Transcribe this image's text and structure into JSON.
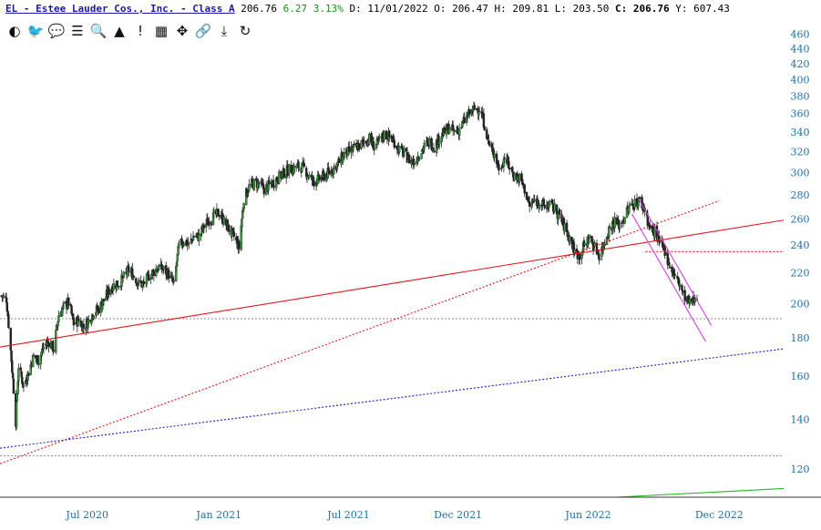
{
  "header": {
    "symbol_name": "EL - Estee Lauder Cos., Inc. - Class A",
    "last": "206.76",
    "change": "6.27 3.13%",
    "date_label": "D:",
    "date": "11/01/2022",
    "open_label": "O:",
    "open": "206.47",
    "high_label": "H:",
    "high": "209.81",
    "low_label": "L:",
    "low": "203.50",
    "close_label": "C:",
    "close": "206.76",
    "y_label": "Y:",
    "y": "607.43"
  },
  "toolbar": [
    {
      "icon": "dashboard-icon",
      "glyph": "◐"
    },
    {
      "icon": "twitter-icon",
      "glyph": "🐦"
    },
    {
      "icon": "comment-icon",
      "glyph": "💬"
    },
    {
      "icon": "list-icon",
      "glyph": "☰"
    },
    {
      "icon": "search-icon",
      "glyph": "🔍"
    },
    {
      "icon": "triangle-icon",
      "glyph": "▲"
    },
    {
      "icon": "exclamation-icon",
      "glyph": "!"
    },
    {
      "icon": "calendar-icon",
      "glyph": "▦"
    },
    {
      "icon": "move-icon",
      "glyph": "✥"
    },
    {
      "icon": "link-icon",
      "glyph": "🔗"
    },
    {
      "icon": "download-icon",
      "glyph": "⤓"
    },
    {
      "icon": "refresh-icon",
      "glyph": "↻"
    }
  ],
  "chart_data": {
    "type": "candlestick",
    "y_scale": "log",
    "ylim": [
      110,
      470
    ],
    "y_ticks": [
      120,
      140,
      160,
      180,
      200,
      220,
      240,
      260,
      280,
      300,
      320,
      340,
      360,
      380,
      400,
      420,
      440,
      460
    ],
    "x_ticks": [
      "Jul 2020",
      "Jan 2021",
      "Jul 2021",
      "Dec 2021",
      "Jun 2022",
      "Dec 2022"
    ],
    "xlim": [
      "2020-03-01",
      "2023-03-01"
    ],
    "x_tick_dates": [
      "2020-07-01",
      "2021-01-01",
      "2021-07-01",
      "2021-12-01",
      "2022-06-01",
      "2022-12-01"
    ],
    "approx_close_path": [
      [
        "2020-03-03",
        205
      ],
      [
        "2020-03-10",
        203
      ],
      [
        "2020-03-17",
        168
      ],
      [
        "2020-03-23",
        139
      ],
      [
        "2020-03-27",
        165
      ],
      [
        "2020-04-03",
        155
      ],
      [
        "2020-04-10",
        162
      ],
      [
        "2020-04-17",
        170
      ],
      [
        "2020-04-24",
        168
      ],
      [
        "2020-05-01",
        175
      ],
      [
        "2020-05-08",
        178
      ],
      [
        "2020-05-15",
        174
      ],
      [
        "2020-05-22",
        193
      ],
      [
        "2020-05-29",
        198
      ],
      [
        "2020-06-05",
        201
      ],
      [
        "2020-06-12",
        188
      ],
      [
        "2020-06-19",
        190
      ],
      [
        "2020-06-26",
        186
      ],
      [
        "2020-07-03",
        190
      ],
      [
        "2020-07-10",
        195
      ],
      [
        "2020-07-17",
        197
      ],
      [
        "2020-07-24",
        202
      ],
      [
        "2020-07-31",
        208
      ],
      [
        "2020-08-07",
        212
      ],
      [
        "2020-08-14",
        213
      ],
      [
        "2020-08-21",
        217
      ],
      [
        "2020-08-28",
        222
      ],
      [
        "2020-09-04",
        218
      ],
      [
        "2020-09-11",
        213
      ],
      [
        "2020-09-18",
        212
      ],
      [
        "2020-09-25",
        218
      ],
      [
        "2020-10-02",
        221
      ],
      [
        "2020-10-09",
        224
      ],
      [
        "2020-10-16",
        222
      ],
      [
        "2020-10-23",
        219
      ],
      [
        "2020-10-30",
        212
      ],
      [
        "2020-11-06",
        239
      ],
      [
        "2020-11-13",
        243
      ],
      [
        "2020-11-20",
        240
      ],
      [
        "2020-11-27",
        247
      ],
      [
        "2020-12-04",
        246
      ],
      [
        "2020-12-11",
        254
      ],
      [
        "2020-12-18",
        259
      ],
      [
        "2020-12-25",
        262
      ],
      [
        "2021-01-01",
        265
      ],
      [
        "2021-01-08",
        258
      ],
      [
        "2021-01-15",
        252
      ],
      [
        "2021-01-22",
        246
      ],
      [
        "2021-01-29",
        238
      ],
      [
        "2021-02-05",
        277
      ],
      [
        "2021-02-12",
        287
      ],
      [
        "2021-02-19",
        290
      ],
      [
        "2021-02-26",
        290
      ],
      [
        "2021-03-05",
        285
      ],
      [
        "2021-03-12",
        288
      ],
      [
        "2021-03-19",
        292
      ],
      [
        "2021-03-26",
        296
      ],
      [
        "2021-04-02",
        300
      ],
      [
        "2021-04-09",
        303
      ],
      [
        "2021-04-16",
        304
      ],
      [
        "2021-04-23",
        306
      ],
      [
        "2021-04-30",
        304
      ],
      [
        "2021-05-07",
        296
      ],
      [
        "2021-05-14",
        292
      ],
      [
        "2021-05-21",
        294
      ],
      [
        "2021-05-28",
        297
      ],
      [
        "2021-06-04",
        300
      ],
      [
        "2021-06-11",
        305
      ],
      [
        "2021-06-18",
        310
      ],
      [
        "2021-06-25",
        318
      ],
      [
        "2021-07-02",
        320
      ],
      [
        "2021-07-09",
        323
      ],
      [
        "2021-07-16",
        326
      ],
      [
        "2021-07-23",
        330
      ],
      [
        "2021-07-30",
        333
      ],
      [
        "2021-08-06",
        325
      ],
      [
        "2021-08-13",
        330
      ],
      [
        "2021-08-20",
        338
      ],
      [
        "2021-08-27",
        335
      ],
      [
        "2021-09-03",
        330
      ],
      [
        "2021-09-10",
        322
      ],
      [
        "2021-09-17",
        318
      ],
      [
        "2021-09-24",
        312
      ],
      [
        "2021-10-01",
        310
      ],
      [
        "2021-10-08",
        318
      ],
      [
        "2021-10-15",
        325
      ],
      [
        "2021-10-22",
        330
      ],
      [
        "2021-10-29",
        325
      ],
      [
        "2021-11-05",
        334
      ],
      [
        "2021-11-12",
        340
      ],
      [
        "2021-11-19",
        345
      ],
      [
        "2021-11-26",
        340
      ],
      [
        "2021-12-03",
        343
      ],
      [
        "2021-12-10",
        352
      ],
      [
        "2021-12-17",
        360
      ],
      [
        "2021-12-24",
        365
      ],
      [
        "2021-12-31",
        366
      ],
      [
        "2022-01-07",
        348
      ],
      [
        "2022-01-14",
        325
      ],
      [
        "2022-01-21",
        318
      ],
      [
        "2022-01-28",
        302
      ],
      [
        "2022-02-04",
        315
      ],
      [
        "2022-02-11",
        305
      ],
      [
        "2022-02-18",
        297
      ],
      [
        "2022-02-25",
        295
      ],
      [
        "2022-03-04",
        285
      ],
      [
        "2022-03-11",
        270
      ],
      [
        "2022-03-18",
        275
      ],
      [
        "2022-03-25",
        274
      ],
      [
        "2022-04-01",
        270
      ],
      [
        "2022-04-08",
        272
      ],
      [
        "2022-04-15",
        268
      ],
      [
        "2022-04-22",
        262
      ],
      [
        "2022-04-29",
        253
      ],
      [
        "2022-05-06",
        245
      ],
      [
        "2022-05-13",
        235
      ],
      [
        "2022-05-20",
        232
      ],
      [
        "2022-05-27",
        240
      ],
      [
        "2022-06-03",
        245
      ],
      [
        "2022-06-10",
        238
      ],
      [
        "2022-06-17",
        232
      ],
      [
        "2022-06-24",
        243
      ],
      [
        "2022-07-01",
        253
      ],
      [
        "2022-07-08",
        258
      ],
      [
        "2022-07-15",
        255
      ],
      [
        "2022-07-22",
        262
      ],
      [
        "2022-07-29",
        270
      ],
      [
        "2022-08-05",
        273
      ],
      [
        "2022-08-12",
        275
      ],
      [
        "2022-08-19",
        268
      ],
      [
        "2022-08-26",
        252
      ],
      [
        "2022-09-02",
        250
      ],
      [
        "2022-09-09",
        240
      ],
      [
        "2022-09-16",
        236
      ],
      [
        "2022-09-23",
        225
      ],
      [
        "2022-09-30",
        218
      ],
      [
        "2022-10-07",
        212
      ],
      [
        "2022-10-14",
        204
      ],
      [
        "2022-10-21",
        200
      ],
      [
        "2022-10-28",
        203
      ],
      [
        "2022-11-01",
        206.76
      ]
    ],
    "trendlines": [
      {
        "style": "solid",
        "color": "#e0161c",
        "from": [
          "2020-03-01",
          175
        ],
        "to": [
          "2023-03-01",
          259
        ]
      },
      {
        "style": "dotted",
        "color": "#e0161c",
        "from": [
          "2020-03-01",
          122
        ],
        "to": [
          "2022-12-01",
          275
        ]
      },
      {
        "style": "dotted",
        "color": "#1818c8",
        "from": [
          "2020-03-01",
          128
        ],
        "to": [
          "2023-03-01",
          174
        ]
      },
      {
        "style": "dotted",
        "color": "#e0161c",
        "from": [
          "2022-08-20",
          235
        ],
        "to": [
          "2023-03-01",
          235
        ]
      },
      {
        "style": "dotted",
        "color": "#999999",
        "from": [
          "2020-03-01",
          191
        ],
        "to": [
          "2023-03-01",
          191
        ]
      },
      {
        "style": "dotted",
        "color": "#999999",
        "from": [
          "2020-03-01",
          125
        ],
        "to": [
          "2023-03-01",
          125
        ]
      },
      {
        "style": "solid",
        "color": "#cc44dd",
        "from": [
          "2022-08-10",
          277
        ],
        "to": [
          "2022-11-20",
          187
        ]
      },
      {
        "style": "solid",
        "color": "#cc44dd",
        "from": [
          "2022-08-01",
          264
        ],
        "to": [
          "2022-11-12",
          178
        ]
      },
      {
        "style": "solid",
        "color": "#22bb22",
        "from": [
          "2022-07-10",
          110
        ],
        "to": [
          "2023-03-01",
          113
        ]
      }
    ]
  }
}
